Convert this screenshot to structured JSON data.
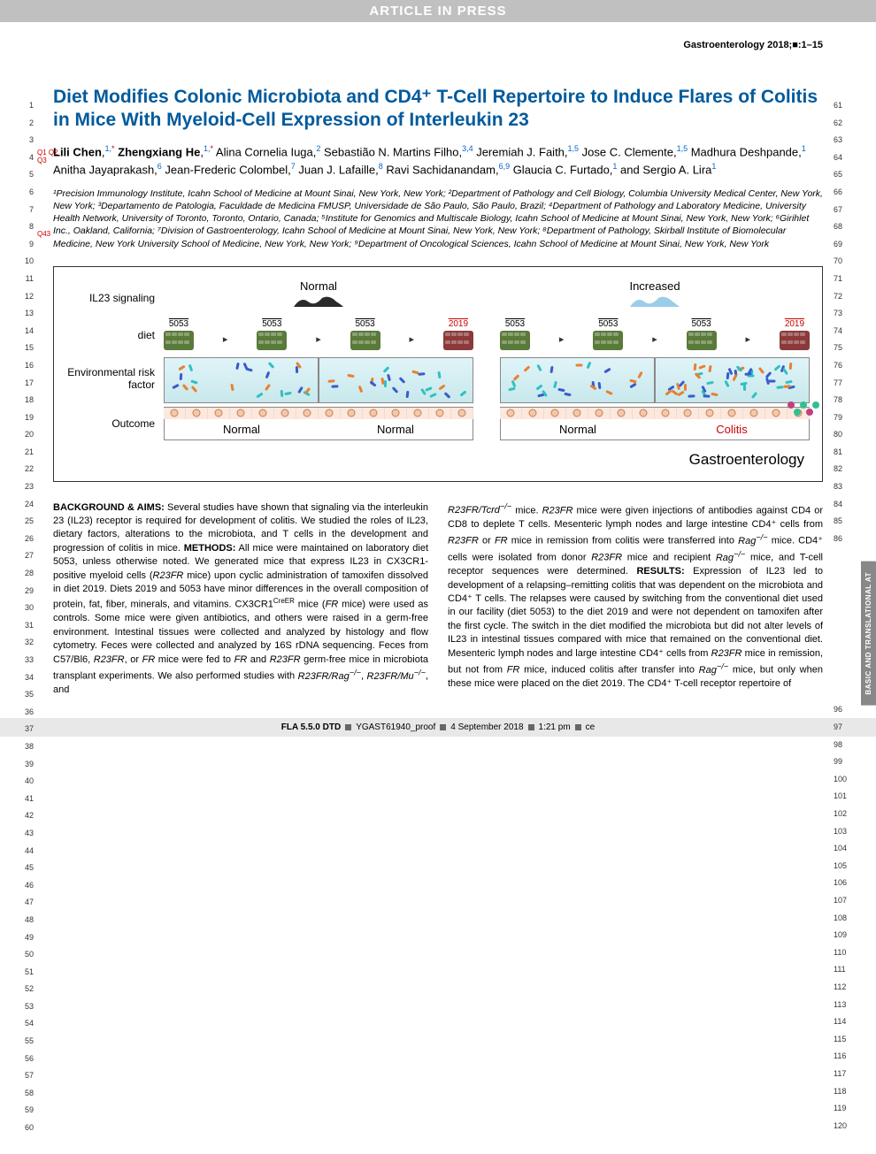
{
  "banner": "ARTICLE IN PRESS",
  "journal_info": "Gastroenterology 2018;■:1–15",
  "q_marks": {
    "q1q2": "Q1 Q2",
    "q3": "Q3",
    "q43": "Q43"
  },
  "title": "Diet Modifies Colonic Microbiota and CD4⁺ T-Cell Repertoire to Induce Flares of Colitis in Mice With Myeloid-Cell Expression of Interleukin 23",
  "authors_html": "<b>Lili Chen</b>,<span class='sup'>1,</span><span class='asterisk'>*</span> <b>Zhengxiang He</b>,<span class='sup'>1,</span><span class='asterisk'>*</span> Alina Cornelia Iuga,<span class='sup'>2</span> Sebastião N. Martins Filho,<span class='sup'>3,4</span> Jeremiah J. Faith,<span class='sup'>1,5</span> Jose C. Clemente,<span class='sup'>1,5</span> Madhura Deshpande,<span class='sup'>1</span> Anitha Jayaprakash,<span class='sup'>6</span> Jean-Frederic Colombel,<span class='sup'>7</span> Juan J. Lafaille,<span class='sup'>8</span> Ravi Sachidanandam,<span class='sup'>6,9</span> Glaucia C. Furtado,<span class='sup'>1</span> and Sergio A. Lira<span class='sup'>1</span>",
  "affiliations": "¹Precision Immunology Institute, Icahn School of Medicine at Mount Sinai, New York, New York; ²Department of Pathology and Cell Biology, Columbia University Medical Center, New York, New York; ³Departamento de Patologia, Faculdade de Medicina FMUSP, Universidade de São Paulo, São Paulo, Brazil; ⁴Department of Pathology and Laboratory Medicine, University Health Network, University of Toronto, Toronto, Ontario, Canada; ⁵Institute for Genomics and Multiscale Biology, Icahn School of Medicine at Mount Sinai, New York, New York; ⁶Girihlet Inc., Oakland, California; ⁷Division of Gastroenterology, Icahn School of Medicine at Mount Sinai, New York, New York; ⁸Department of Pathology, Skirball Institute of Biomolecular Medicine, New York University School of Medicine, New York, New York; ⁹Department of Oncological Sciences, Icahn School of Medicine at Mount Sinai, New York, New York",
  "figure": {
    "row_labels": [
      "IL23 signaling",
      "diet",
      "Environmental risk factor",
      "Outcome"
    ],
    "panel_headers": [
      "Normal",
      "Increased"
    ],
    "diet_codes": [
      "5053",
      "5053",
      "5053",
      "2019"
    ],
    "diet_colors": {
      "5053": "#5a7a3a",
      "2019": "#8b3a3a"
    },
    "outcomes_left": [
      "Normal",
      "Normal"
    ],
    "outcomes_right": [
      "Normal",
      "Colitis"
    ],
    "journal_label": "Gastroenterology",
    "il23_normal_color": "#2a2a2a",
    "il23_increased_color": "#9acde8",
    "env_bg": "#d8f0f4",
    "outcome_bg": "#fce8dc",
    "bacteria_colors": [
      "#3a5bcc",
      "#e88030",
      "#30c0c0"
    ]
  },
  "side_tab": "BASIC AND TRANSLATIONAL AT",
  "abstract": {
    "col1": "<b>BACKGROUND & AIMS:</b> Several studies have shown that signaling via the interleukin 23 (IL23) receptor is required for development of colitis. We studied the roles of IL23, dietary factors, alterations to the microbiota, and T cells in the development and progression of colitis in mice. <b>METHODS:</b> All mice were maintained on laboratory diet 5053, unless otherwise noted. We generated mice that express IL23 in CX3CR1-positive myeloid cells (<i>R23FR</i> mice) upon cyclic administration of tamoxifen dissolved in diet 2019. Diets 2019 and 5053 have minor differences in the overall composition of protein, fat, fiber, minerals, and vitamins. CX3CR1<sup style='font-size:8px'>CreER</sup> mice (<i>FR</i> mice) were used as controls. Some mice were given antibiotics, and others were raised in a germ-free environment. Intestinal tissues were collected and analyzed by histology and flow cytometry. Feces were collected and analyzed by 16S rDNA sequencing. Feces from C57/Bl6, <i>R23FR</i>, or <i>FR</i> mice were fed to <i>FR</i> and <i>R23FR</i> germ-free mice in microbiota transplant experiments. We also performed studies with <i>R23FR/Rag<sup>−/−</sup></i>, <i>R23FR/Mu<sup>−/−</sup></i>, and",
    "col2": "<i>R23FR/Tcrd<sup>−/−</sup></i> mice. <i>R23FR</i> mice were given injections of antibodies against CD4 or CD8 to deplete T cells. Mesenteric lymph nodes and large intestine CD4⁺ cells from <i>R23FR</i> or <i>FR</i> mice in remission from colitis were transferred into <i>Rag<sup>−/−</sup></i> mice. CD4⁺ cells were isolated from donor <i>R23FR</i> mice and recipient <i>Rag<sup>−/−</sup></i> mice, and T-cell receptor sequences were determined. <b>RESULTS:</b> Expression of IL23 led to development of a relapsing–remitting colitis that was dependent on the microbiota and CD4⁺ T cells. The relapses were caused by switching from the conventional diet used in our facility (diet 5053) to the diet 2019 and were not dependent on tamoxifen after the first cycle. The switch in the diet modified the microbiota but did not alter levels of IL23 in intestinal tissues compared with mice that remained on the conventional diet. Mesenteric lymph nodes and large intestine CD4⁺ cells from <i>R23FR</i> mice in remission, but not from <i>FR</i> mice, induced colitis after transfer into <i>Rag<sup>−/−</sup></i> mice, but only when these mice were placed on the diet 2019. The CD4⁺ T-cell receptor repertoire of"
  },
  "footer": {
    "text1": "FLA 5.5.0 DTD",
    "text2": "YGAST61940_proof",
    "text3": "4 September 2018",
    "text4": "1:21 pm",
    "text5": "ce"
  },
  "line_numbers": {
    "left_start": 1,
    "left_end": 60,
    "right_ranges": [
      [
        61,
        86
      ],
      [
        96,
        120
      ]
    ]
  }
}
